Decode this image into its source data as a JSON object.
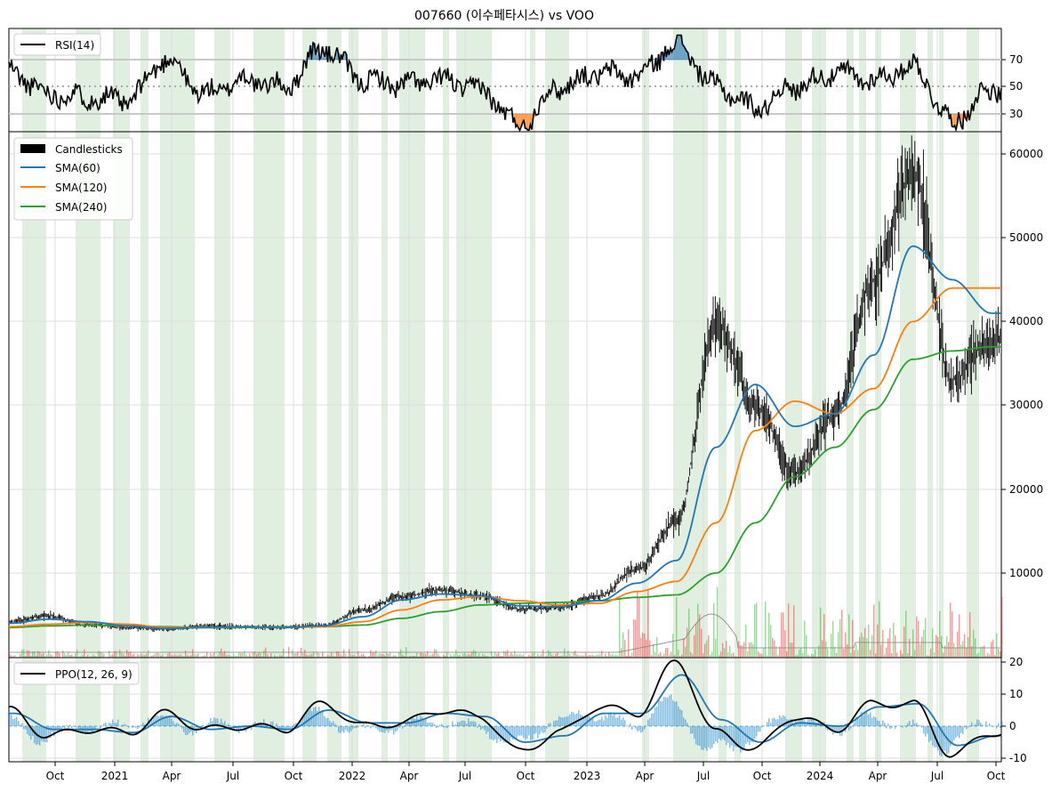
{
  "title": "007660 (이수페타시스) vs VOO",
  "colors": {
    "shade": "#d7ead7",
    "rsi_line": "#000000",
    "rsi_fill_high": "#1f77b4",
    "rsi_fill_low": "#ff7f0e",
    "sma60": "#1f77b4",
    "sma120": "#ff7f0e",
    "sma240": "#2ca02c",
    "candle": "#000000",
    "ppo_line": "#000000",
    "ppo_signal": "#1f77b4",
    "ppo_hist": "#1f77b4",
    "vol_up": "#2ca02c",
    "vol_down": "#d62728",
    "vol_ma": "#808080"
  },
  "x_ticks": [
    "Oct",
    "2021",
    "Apr",
    "Jul",
    "Oct",
    "2022",
    "Apr",
    "Jul",
    "Oct",
    "2023",
    "Apr",
    "Jul",
    "Oct",
    "2024",
    "Apr",
    "Jul",
    "Oct"
  ],
  "panels": {
    "rsi": {
      "legend": "RSI(14)",
      "yticks": [
        "70",
        "50",
        "30"
      ],
      "overbought": 70,
      "oversold": 30,
      "mid": 50
    },
    "price": {
      "legend": [
        "Candlesticks",
        "SMA(60)",
        "SMA(120)",
        "SMA(240)"
      ],
      "yticks": [
        "60000",
        "50000",
        "40000",
        "30000",
        "20000",
        "10000"
      ]
    },
    "ppo": {
      "legend": "PPO(12, 26, 9)",
      "yticks": [
        "20",
        "10",
        "0",
        "-10"
      ]
    }
  },
  "chart_data": [
    {
      "type": "line",
      "title": "007660 (이수페타시스) vs VOO",
      "panel": "RSI",
      "series": [
        {
          "name": "RSI(14)"
        }
      ],
      "x_range": [
        "2020-08",
        "2024-10"
      ],
      "ylim": [
        15,
        90
      ],
      "reference_lines": [
        70,
        50,
        30
      ],
      "x_date": [
        "2020-08",
        "2020-10",
        "2020-12",
        "2021-02",
        "2021-04",
        "2021-06",
        "2021-08",
        "2021-10",
        "2021-12",
        "2022-02",
        "2022-04",
        "2022-06",
        "2022-08",
        "2022-10",
        "2022-12",
        "2023-02",
        "2023-04",
        "2023-06",
        "2023-08",
        "2023-10",
        "2023-12",
        "2024-02",
        "2024-04",
        "2024-06",
        "2024-08",
        "2024-10"
      ],
      "rsi": [
        62,
        45,
        42,
        40,
        70,
        45,
        55,
        50,
        78,
        55,
        52,
        55,
        48,
        22,
        50,
        60,
        58,
        82,
        50,
        35,
        50,
        60,
        55,
        65,
        25,
        48
      ]
    },
    {
      "type": "line",
      "panel": "Price",
      "series": [
        {
          "name": "Candlesticks",
          "values": [
            4200,
            4900,
            3800,
            3500,
            3300,
            3700,
            3600,
            3500,
            3800,
            5600,
            7200,
            8000,
            7300,
            5700,
            5900,
            7200,
            10500,
            16000,
            40000,
            30000,
            22000,
            29000,
            45000,
            58000,
            33000,
            38000
          ]
        },
        {
          "name": "SMA(60)",
          "values": [
            4000,
            4500,
            4200,
            3700,
            3400,
            3500,
            3600,
            3500,
            3700,
            4800,
            6800,
            7500,
            7300,
            6100,
            6000,
            6700,
            8800,
            11500,
            25000,
            32500,
            27500,
            29000,
            36000,
            49000,
            45000,
            41000
          ]
        },
        {
          "name": "SMA(120)",
          "values": [
            3600,
            3900,
            4100,
            3900,
            3500,
            3500,
            3600,
            3500,
            3600,
            4200,
            5600,
            6800,
            7200,
            6700,
            6200,
            6400,
            7800,
            9000,
            16000,
            27000,
            30500,
            29000,
            32000,
            40000,
            44000,
            44000
          ]
        },
        {
          "name": "SMA(240)",
          "values": [
            3500,
            3700,
            3800,
            3700,
            3600,
            3500,
            3500,
            3600,
            3600,
            3800,
            4600,
            5400,
            6200,
            6400,
            6500,
            6700,
            7100,
            7400,
            10000,
            16000,
            21500,
            25000,
            29500,
            35500,
            36500,
            37000
          ]
        }
      ],
      "x_date": [
        "2020-08",
        "2020-10",
        "2020-12",
        "2021-02",
        "2021-04",
        "2021-06",
        "2021-08",
        "2021-10",
        "2021-12",
        "2022-02",
        "2022-04",
        "2022-06",
        "2022-08",
        "2022-10",
        "2022-12",
        "2023-02",
        "2023-04",
        "2023-06",
        "2023-08",
        "2023-10",
        "2023-12",
        "2024-02",
        "2024-04",
        "2024-06",
        "2024-08",
        "2024-10"
      ],
      "ylim": [
        0,
        62000
      ]
    },
    {
      "type": "line",
      "panel": "PPO",
      "series": [
        {
          "name": "PPO(12, 26, 9)"
        }
      ],
      "x_date": [
        "2020-08",
        "2020-10",
        "2020-12",
        "2021-02",
        "2021-04",
        "2021-06",
        "2021-08",
        "2021-10",
        "2021-12",
        "2022-02",
        "2022-04",
        "2022-06",
        "2022-08",
        "2022-10",
        "2022-12",
        "2023-02",
        "2023-04",
        "2023-06",
        "2023-08",
        "2023-10",
        "2023-12",
        "2024-02",
        "2024-04",
        "2024-06",
        "2024-08",
        "2024-10"
      ],
      "ppo": [
        5,
        -3,
        -1,
        -2,
        4,
        -1,
        0,
        -1,
        7,
        0,
        1,
        5,
        3,
        -8,
        -2,
        6,
        4,
        20,
        -2,
        -7,
        3,
        -1,
        7,
        7,
        -9,
        -2
      ],
      "signal": [
        4,
        -1,
        -1,
        -2,
        3,
        -1,
        0,
        -1,
        5,
        1,
        1,
        4,
        3,
        -5,
        -3,
        4,
        4,
        16,
        2,
        -5,
        1,
        0,
        6,
        7,
        -6,
        -3
      ],
      "ylim": [
        -11,
        21
      ]
    }
  ]
}
